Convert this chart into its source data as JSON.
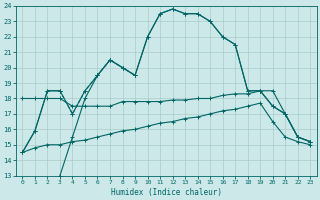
{
  "xlabel": "Humidex (Indice chaleur)",
  "xlim": [
    -0.5,
    23.5
  ],
  "ylim": [
    13,
    24
  ],
  "yticks": [
    13,
    14,
    15,
    16,
    17,
    18,
    19,
    20,
    21,
    22,
    23,
    24
  ],
  "xticks": [
    0,
    1,
    2,
    3,
    4,
    5,
    6,
    7,
    8,
    9,
    10,
    11,
    12,
    13,
    14,
    15,
    16,
    17,
    18,
    19,
    20,
    21,
    22,
    23
  ],
  "bg_color": "#cce8e8",
  "grid_color": "#aacccc",
  "line_color": "#006666",
  "line1": {
    "x": [
      0,
      1,
      2,
      3,
      4,
      5,
      6,
      7,
      8,
      9,
      10,
      11,
      12,
      13,
      14,
      15,
      16,
      17,
      18,
      19,
      20,
      21,
      22,
      23
    ],
    "y": [
      14.5,
      15.9,
      18.5,
      18.5,
      17.0,
      18.5,
      19.5,
      20.5,
      20.0,
      19.5,
      22.0,
      23.5,
      23.8,
      23.5,
      23.5,
      23.0,
      22.0,
      21.5,
      18.5,
      18.5,
      17.5,
      17.0,
      15.5,
      15.2
    ]
  },
  "line2_solid1": {
    "x": [
      0,
      1,
      2,
      3
    ],
    "y": [
      14.5,
      15.9,
      18.5,
      18.5
    ]
  },
  "line2_dashed": {
    "x": [
      3,
      4,
      5,
      6,
      7,
      8,
      9
    ],
    "y": [
      18.5,
      17.0,
      18.5,
      19.5,
      20.5,
      20.0,
      19.5
    ]
  },
  "line2_solid2": {
    "x": [
      3,
      4,
      5,
      6,
      7,
      8,
      9,
      10,
      11,
      12,
      13,
      14,
      15,
      16,
      17,
      18,
      19,
      20,
      21,
      22,
      23
    ],
    "y": [
      13.0,
      15.5,
      18.0,
      19.5,
      20.5,
      20.0,
      19.5,
      22.0,
      23.5,
      23.8,
      23.5,
      23.5,
      23.0,
      22.0,
      21.5,
      18.5,
      18.5,
      17.5,
      17.0,
      15.5,
      15.2
    ]
  },
  "line3": {
    "x": [
      0,
      1,
      2,
      3,
      4,
      5,
      6,
      7,
      8,
      9,
      10,
      11,
      12,
      13,
      14,
      15,
      16,
      17,
      18,
      19,
      20,
      21,
      22,
      23
    ],
    "y": [
      18.0,
      18.0,
      18.0,
      18.0,
      17.5,
      17.5,
      17.5,
      17.5,
      17.8,
      17.8,
      17.8,
      17.8,
      17.9,
      17.9,
      18.0,
      18.0,
      18.2,
      18.3,
      18.3,
      18.5,
      18.5,
      17.0,
      15.5,
      15.2
    ]
  },
  "line4": {
    "x": [
      0,
      1,
      2,
      3,
      4,
      5,
      6,
      7,
      8,
      9,
      10,
      11,
      12,
      13,
      14,
      15,
      16,
      17,
      18,
      19,
      20,
      21,
      22,
      23
    ],
    "y": [
      14.5,
      14.8,
      15.0,
      15.0,
      15.2,
      15.3,
      15.5,
      15.7,
      15.9,
      16.0,
      16.2,
      16.4,
      16.5,
      16.7,
      16.8,
      17.0,
      17.2,
      17.3,
      17.5,
      17.7,
      16.5,
      15.5,
      15.2,
      15.0
    ]
  }
}
